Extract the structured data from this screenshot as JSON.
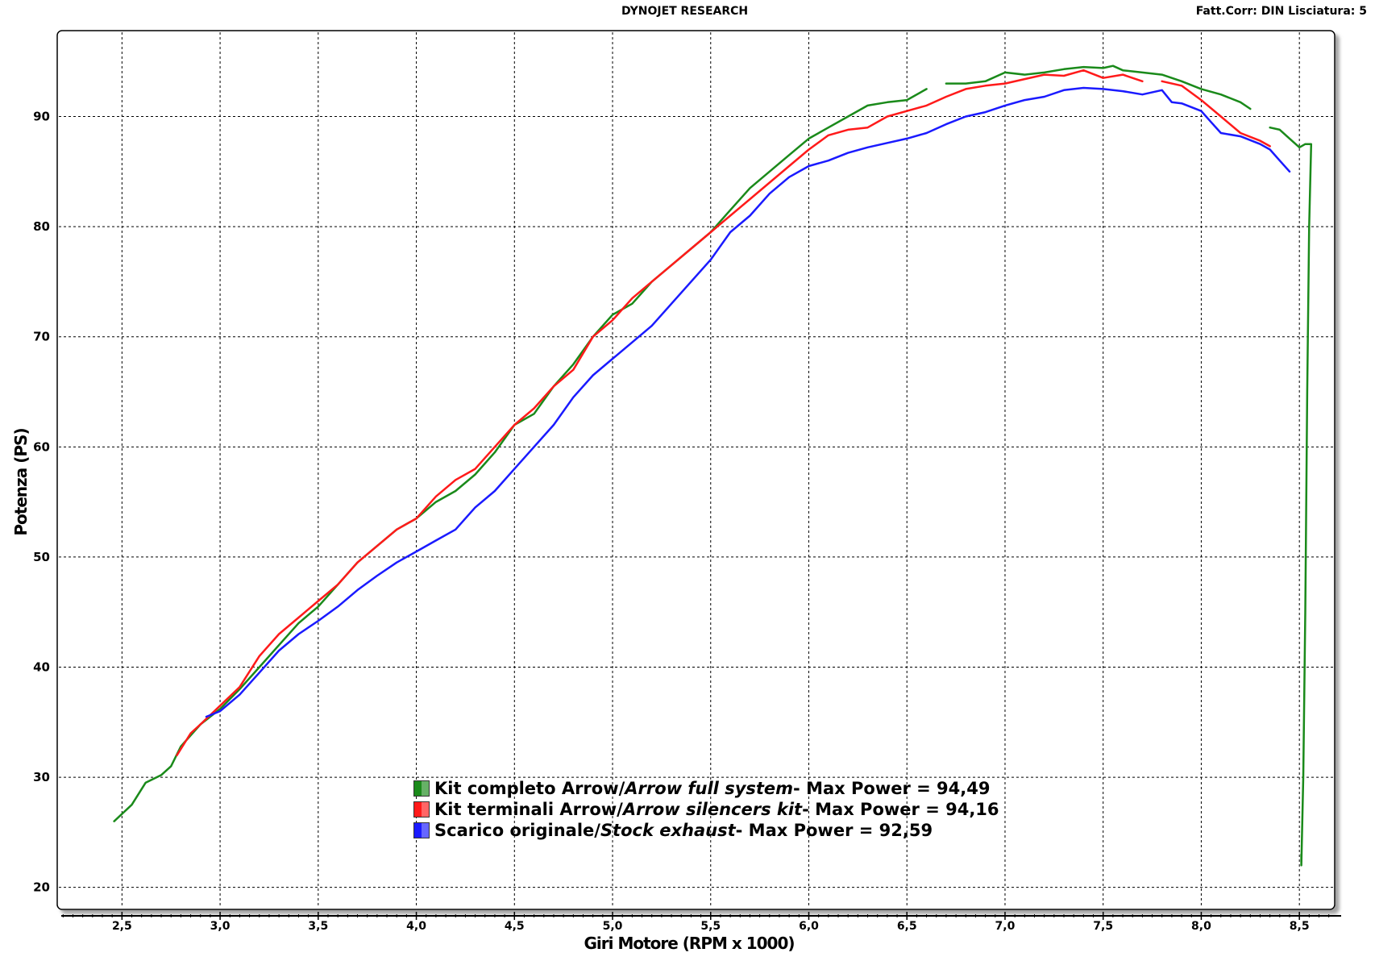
{
  "header": {
    "center_title": "DYNOJET RESEARCH",
    "right_info": "Fatt.Corr: DIN  Lisciatura: 5"
  },
  "legend": [
    {
      "label_it": "Kit completo Arrow",
      "sep": " / ",
      "label_en": "Arrow full system",
      "suffix": " - Max Power = 94,49",
      "color": "#1a8a1a"
    },
    {
      "label_it": "Kit terminali Arrow",
      "sep": " / ",
      "label_en": "Arrow silencers kit",
      "suffix": " - Max Power = 94,16",
      "color": "#ff1a1a"
    },
    {
      "label_it": "Scarico originale",
      "sep": " / ",
      "label_en": "Stock exhaust",
      "suffix": " - Max Power = 92,59",
      "color": "#1a1aff"
    }
  ],
  "chart_data": {
    "type": "line",
    "title": "DYNOJET RESEARCH",
    "xlabel": "Giri Motore (RPM x 1000)",
    "ylabel": "Potenza (PS)",
    "xlim": [
      2.17,
      8.68
    ],
    "ylim": [
      18.0,
      97.8
    ],
    "x_ticks": [
      "2,5",
      "3,0",
      "3,5",
      "4,0",
      "4,5",
      "5,0",
      "5,5",
      "6,0",
      "6,5",
      "7,0",
      "7,5",
      "8,0",
      "8,5"
    ],
    "y_ticks": [
      "20",
      "30",
      "40",
      "50",
      "60",
      "70",
      "80",
      "90"
    ],
    "grid": true,
    "series": [
      {
        "name": "Kit completo Arrow / Arrow full system - Max Power = 94,49",
        "color": "#1a8a1a",
        "x": [
          2.46,
          2.55,
          2.62,
          2.7,
          2.75,
          2.8,
          2.9,
          3.0,
          3.1,
          3.2,
          3.3,
          3.4,
          3.5,
          3.6,
          3.7,
          3.8,
          3.9,
          4.0,
          4.1,
          4.2,
          4.3,
          4.4,
          4.5,
          4.6,
          4.7,
          4.8,
          4.9,
          5.0,
          5.1,
          5.2,
          5.3,
          5.4,
          5.5,
          5.6,
          5.7,
          5.8,
          5.9,
          6.0,
          6.1,
          6.2,
          6.3,
          6.4,
          6.5,
          6.6,
          6.65,
          6.7,
          6.8,
          6.9,
          7.0,
          7.1,
          7.2,
          7.3,
          7.4,
          7.5,
          7.55,
          7.6,
          7.7,
          7.8,
          7.9,
          8.0,
          8.1,
          8.2,
          8.25,
          8.3,
          8.35,
          8.4,
          8.45,
          8.5,
          8.53,
          8.56,
          8.55,
          8.54,
          8.53,
          8.52,
          8.51,
          8.51
        ],
        "y": [
          26.0,
          27.5,
          29.5,
          30.2,
          31.0,
          32.8,
          34.8,
          36.2,
          38.0,
          40.0,
          42.0,
          44.0,
          45.5,
          47.5,
          49.5,
          51.0,
          52.5,
          53.5,
          55.0,
          56.0,
          57.5,
          59.5,
          62.0,
          63.0,
          65.5,
          67.5,
          70.0,
          72.0,
          73.0,
          75.0,
          76.5,
          78.0,
          79.5,
          81.5,
          83.5,
          85.0,
          86.5,
          88.0,
          89.0,
          90.0,
          91.0,
          91.3,
          91.5,
          92.5,
          null,
          93.0,
          93.0,
          93.2,
          94.0,
          93.8,
          94.0,
          94.3,
          94.5,
          94.4,
          94.6,
          94.2,
          94.0,
          93.8,
          93.2,
          92.5,
          92.0,
          91.3,
          90.7,
          null,
          89.0,
          88.8,
          88.0,
          87.2,
          87.5,
          87.5,
          80.0,
          65.0,
          45.0,
          30.0,
          22.0,
          23.0
        ]
      },
      {
        "name": "Kit terminali Arrow / Arrow silencers kit - Max Power = 94,16",
        "color": "#ff1a1a",
        "x": [
          2.78,
          2.85,
          2.9,
          3.0,
          3.1,
          3.2,
          3.3,
          3.4,
          3.5,
          3.6,
          3.7,
          3.8,
          3.9,
          4.0,
          4.1,
          4.2,
          4.3,
          4.4,
          4.5,
          4.6,
          4.7,
          4.8,
          4.9,
          5.0,
          5.1,
          5.2,
          5.3,
          5.4,
          5.5,
          5.6,
          5.7,
          5.8,
          5.9,
          6.0,
          6.1,
          6.2,
          6.3,
          6.4,
          6.5,
          6.6,
          6.7,
          6.8,
          6.9,
          7.0,
          7.1,
          7.2,
          7.3,
          7.4,
          7.5,
          7.6,
          7.7,
          7.75,
          7.8,
          7.9,
          8.0,
          8.1,
          8.2,
          8.3,
          8.35
        ],
        "y": [
          32.0,
          34.0,
          34.8,
          36.5,
          38.2,
          41.0,
          43.0,
          44.5,
          46.0,
          47.5,
          49.5,
          51.0,
          52.5,
          53.5,
          55.5,
          57.0,
          58.0,
          60.0,
          62.0,
          63.5,
          65.5,
          67.0,
          70.0,
          71.5,
          73.5,
          75.0,
          76.5,
          78.0,
          79.5,
          81.0,
          82.5,
          84.0,
          85.5,
          87.0,
          88.3,
          88.8,
          89.0,
          90.0,
          90.5,
          91.0,
          91.8,
          92.5,
          92.8,
          93.0,
          93.4,
          93.8,
          93.7,
          94.2,
          93.5,
          93.8,
          93.2,
          null,
          93.2,
          92.8,
          91.5,
          90.0,
          88.5,
          87.8,
          87.3
        ]
      },
      {
        "name": "Scarico originale / Stock exhaust - Max Power = 92,59",
        "color": "#1a1aff",
        "x": [
          2.93,
          3.0,
          3.1,
          3.2,
          3.3,
          3.4,
          3.5,
          3.6,
          3.7,
          3.8,
          3.9,
          4.0,
          4.1,
          4.2,
          4.3,
          4.4,
          4.5,
          4.6,
          4.7,
          4.8,
          4.9,
          5.0,
          5.1,
          5.2,
          5.3,
          5.4,
          5.5,
          5.6,
          5.7,
          5.8,
          5.9,
          6.0,
          6.1,
          6.2,
          6.3,
          6.4,
          6.5,
          6.6,
          6.7,
          6.8,
          6.9,
          7.0,
          7.1,
          7.2,
          7.3,
          7.4,
          7.5,
          7.6,
          7.7,
          7.8,
          7.85,
          7.9,
          8.0,
          8.05,
          8.1,
          8.2,
          8.3,
          8.35,
          8.4,
          8.45
        ],
        "y": [
          35.5,
          36.0,
          37.5,
          39.5,
          41.5,
          43.0,
          44.2,
          45.5,
          47.0,
          48.3,
          49.5,
          50.5,
          51.5,
          52.5,
          54.5,
          56.0,
          58.0,
          60.0,
          62.0,
          64.5,
          66.5,
          68.0,
          69.5,
          71.0,
          73.0,
          75.0,
          77.0,
          79.5,
          81.0,
          83.0,
          84.5,
          85.5,
          86.0,
          86.7,
          87.2,
          87.6,
          88.0,
          88.5,
          89.3,
          90.0,
          90.4,
          91.0,
          91.5,
          91.8,
          92.4,
          92.6,
          92.5,
          92.3,
          92.0,
          92.4,
          91.3,
          91.2,
          90.5,
          89.5,
          88.5,
          88.2,
          87.5,
          87.0,
          86.0,
          85.0
        ]
      }
    ]
  }
}
